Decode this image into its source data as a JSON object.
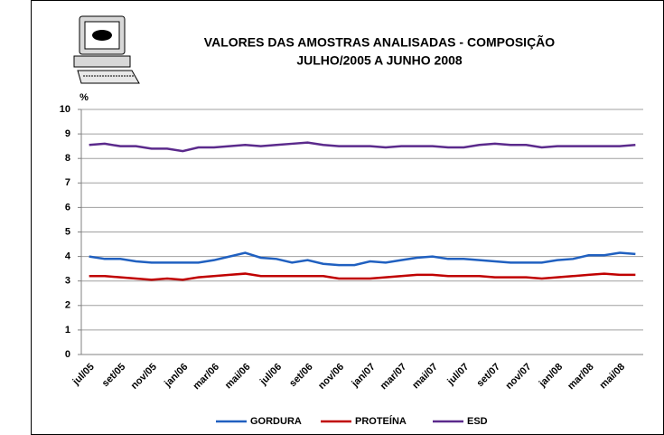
{
  "chart_data": {
    "type": "line",
    "title": [
      "VALORES DAS AMOSTRAS ANALISADAS - COMPOSIÇÃO",
      "JULHO/2005 A JUNHO 2008"
    ],
    "ylabel": "%",
    "categories": [
      "jul/05",
      null,
      "set/05",
      null,
      "nov/05",
      null,
      "jan/06",
      null,
      "mar/06",
      null,
      "mai/06",
      null,
      "jul/06",
      null,
      "set/06",
      null,
      "nov/06",
      null,
      "jan/07",
      null,
      "mar/07",
      null,
      "mai/07",
      null,
      "jul/07",
      null,
      "set/07",
      null,
      "nov/07",
      null,
      "jan/08",
      null,
      "mar/08",
      null,
      "mai/08",
      null
    ],
    "series": [
      {
        "name": "GORDURA",
        "color": "#2060c0",
        "values": [
          4.0,
          3.9,
          3.9,
          3.8,
          3.75,
          3.75,
          3.75,
          3.75,
          3.85,
          4.0,
          4.15,
          3.95,
          3.9,
          3.75,
          3.85,
          3.7,
          3.65,
          3.65,
          3.8,
          3.75,
          3.85,
          3.95,
          4.0,
          3.9,
          3.9,
          3.85,
          3.8,
          3.75,
          3.75,
          3.75,
          3.85,
          3.9,
          4.05,
          4.05,
          4.15,
          4.1
        ]
      },
      {
        "name": "PROTEÍNA",
        "color": "#c00000",
        "values": [
          3.2,
          3.2,
          3.15,
          3.1,
          3.05,
          3.1,
          3.05,
          3.15,
          3.2,
          3.25,
          3.3,
          3.2,
          3.2,
          3.2,
          3.2,
          3.2,
          3.1,
          3.1,
          3.1,
          3.15,
          3.2,
          3.25,
          3.25,
          3.2,
          3.2,
          3.2,
          3.15,
          3.15,
          3.15,
          3.1,
          3.15,
          3.2,
          3.25,
          3.3,
          3.25,
          3.25
        ]
      },
      {
        "name": "ESD",
        "color": "#5b2a8c",
        "values": [
          8.55,
          8.6,
          8.5,
          8.5,
          8.4,
          8.4,
          8.3,
          8.45,
          8.45,
          8.5,
          8.55,
          8.5,
          8.55,
          8.6,
          8.65,
          8.55,
          8.5,
          8.5,
          8.5,
          8.45,
          8.5,
          8.5,
          8.5,
          8.45,
          8.45,
          8.55,
          8.6,
          8.55,
          8.55,
          8.45,
          8.5,
          8.5,
          8.5,
          8.5,
          8.5,
          8.55
        ]
      }
    ],
    "ylim": [
      0,
      10
    ],
    "yticks": [
      0,
      1,
      2,
      3,
      4,
      5,
      6,
      7,
      8,
      9,
      10
    ],
    "grid": true,
    "legend": "bottom"
  }
}
